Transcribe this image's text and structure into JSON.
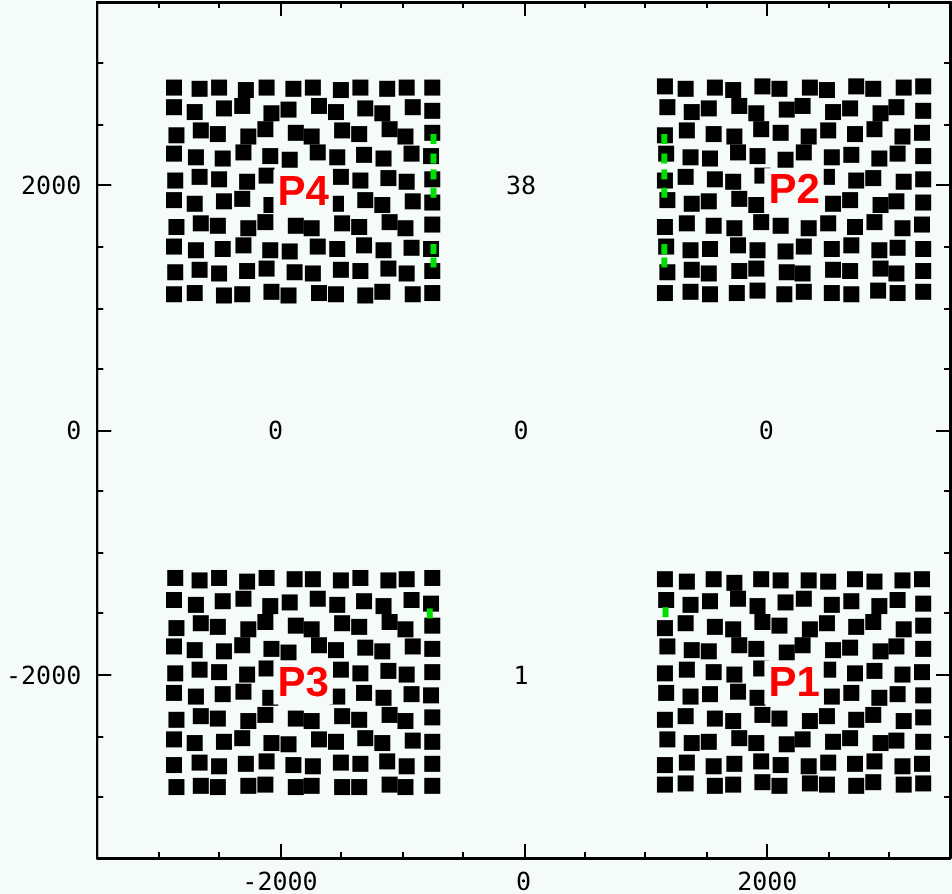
{
  "chart_data": {
    "type": "scatter",
    "marker": "square",
    "xlim": [
      -3500,
      3500
    ],
    "ylim": [
      -3500,
      3500
    ],
    "xticks": [
      {
        "value": -3000,
        "label": null
      },
      {
        "value": -2500,
        "label": null
      },
      -2000,
      {
        "value": -1500,
        "label": null
      },
      {
        "value": -1000,
        "label": null
      },
      {
        "value": -500,
        "label": null
      },
      0,
      {
        "value": 500,
        "label": null
      },
      {
        "value": 1000,
        "label": null
      },
      {
        "value": 1500,
        "label": null
      },
      2000,
      {
        "value": 2500,
        "label": null
      },
      {
        "value": 3000,
        "label": null
      }
    ],
    "yticks": [
      {
        "value": -3000,
        "label": null
      },
      {
        "value": -2500,
        "label": null
      },
      -2000,
      {
        "value": -1500,
        "label": null
      },
      {
        "value": -1000,
        "label": null
      },
      {
        "value": -500,
        "label": null
      },
      0,
      {
        "value": 500,
        "label": null
      },
      {
        "value": 1000,
        "label": null
      },
      {
        "value": 1500,
        "label": null
      },
      2000,
      {
        "value": 2500,
        "label": null
      },
      {
        "value": 3000,
        "label": null
      }
    ],
    "series": [
      {
        "name": "P1",
        "color": "#000000",
        "x": [
          1160,
          1340,
          1560,
          1730,
          1950,
          2110,
          2340,
          2500,
          2720,
          2880,
          3110,
          3270,
          1170,
          1370,
          1530,
          1760,
          1920,
          2150,
          2300,
          2530,
          2690,
          2920,
          3070,
          3280,
          1160,
          1330,
          1570,
          1720,
          1960,
          2100,
          2350,
          2490,
          2730,
          2870,
          3120,
          3280,
          1180,
          1380,
          1520,
          1770,
          1910,
          2160,
          2290,
          2540,
          2680,
          2930,
          3060,
          3280,
          1160,
          1340,
          1560,
          1730,
          1950,
          2500,
          2720,
          2880,
          3110,
          3270,
          1170,
          1370,
          1530,
          1760,
          1920,
          2530,
          2690,
          2920,
          3070,
          3280,
          1160,
          1330,
          1570,
          1720,
          1960,
          2100,
          2350,
          2490,
          2730,
          2870,
          3120,
          3280,
          1180,
          1380,
          1520,
          1770,
          1910,
          2160,
          2290,
          2540,
          2680,
          2930,
          3060,
          3280,
          1160,
          1340,
          1560,
          1730,
          1950,
          2110,
          2340,
          2500,
          2720,
          2880,
          3110,
          3270,
          1160,
          1330,
          1570,
          1720,
          1960,
          2100,
          2350,
          2490,
          2730,
          2870,
          3120,
          3280
        ],
        "values": [
          -1220,
          -1240,
          -1220,
          -1250,
          -1220,
          -1230,
          -1230,
          -1240,
          -1220,
          -1240,
          -1230,
          -1220,
          -1390,
          -1430,
          -1400,
          -1380,
          -1440,
          -1410,
          -1380,
          -1430,
          -1400,
          -1440,
          -1390,
          -1420,
          -1620,
          -1580,
          -1610,
          -1630,
          -1570,
          -1600,
          -1630,
          -1580,
          -1610,
          -1570,
          -1630,
          -1600,
          -1770,
          -1800,
          -1810,
          -1760,
          -1790,
          -1820,
          -1760,
          -1800,
          -1780,
          -1810,
          -1770,
          -1790,
          -1990,
          -1960,
          -1980,
          -2000,
          -1950,
          -1960,
          -1990,
          -1970,
          -2000,
          -1980,
          -2150,
          -2180,
          -2160,
          -2140,
          -2190,
          -2180,
          -2150,
          -2190,
          -2160,
          -2170,
          -2370,
          -2340,
          -2360,
          -2380,
          -2330,
          -2360,
          -2380,
          -2340,
          -2370,
          -2330,
          -2380,
          -2350,
          -2530,
          -2560,
          -2550,
          -2520,
          -2560,
          -2570,
          -2530,
          -2550,
          -2520,
          -2560,
          -2540,
          -2550,
          -2740,
          -2720,
          -2750,
          -2730,
          -2710,
          -2740,
          -2750,
          -2720,
          -2730,
          -2710,
          -2750,
          -2730,
          -2900,
          -2890,
          -2910,
          -2900,
          -2880,
          -2910,
          -2890,
          -2900,
          -2910,
          -2880,
          -2900,
          -2890
        ]
      },
      {
        "name": "P2",
        "color": "#000000",
        "x": [
          1160,
          1330,
          1570,
          1720,
          1960,
          2100,
          2350,
          2490,
          2730,
          2870,
          3120,
          3280,
          1180,
          1380,
          1520,
          1770,
          1910,
          2160,
          2290,
          2540,
          2680,
          2930,
          3060,
          3280,
          1160,
          1340,
          1560,
          1730,
          1950,
          2110,
          2340,
          2500,
          2720,
          2880,
          3110,
          3270,
          1170,
          1370,
          1530,
          1760,
          1920,
          2150,
          2300,
          2530,
          2690,
          2920,
          3070,
          3280,
          1160,
          1330,
          1570,
          1720,
          1960,
          2490,
          2730,
          2870,
          3120,
          3280,
          1180,
          1380,
          1520,
          1770,
          1910,
          2540,
          2680,
          2930,
          3060,
          3280,
          1160,
          1340,
          1560,
          1730,
          1950,
          2110,
          2340,
          2500,
          2720,
          2880,
          3110,
          3270,
          1170,
          1370,
          1530,
          1760,
          1920,
          2150,
          2300,
          2530,
          2690,
          2920,
          3070,
          3280,
          1180,
          1380,
          1520,
          1770,
          1910,
          2160,
          2290,
          2540,
          2680,
          2930,
          3060,
          3280,
          1160,
          1370,
          1530,
          1750,
          1920,
          2140,
          2300,
          2530,
          2690,
          2910,
          3070,
          3280
        ],
        "values": [
          2810,
          2790,
          2800,
          2780,
          2810,
          2790,
          2800,
          2780,
          2810,
          2790,
          2800,
          2810,
          2640,
          2600,
          2630,
          2650,
          2590,
          2620,
          2650,
          2600,
          2630,
          2590,
          2640,
          2610,
          2410,
          2450,
          2420,
          2400,
          2460,
          2430,
          2400,
          2450,
          2420,
          2460,
          2400,
          2430,
          2260,
          2230,
          2220,
          2270,
          2240,
          2210,
          2270,
          2230,
          2250,
          2220,
          2260,
          2240,
          2040,
          2070,
          2050,
          2030,
          2080,
          2070,
          2040,
          2060,
          2030,
          2050,
          1880,
          1850,
          1870,
          1890,
          1840,
          1850,
          1880,
          1840,
          1870,
          1860,
          1660,
          1690,
          1670,
          1650,
          1700,
          1670,
          1650,
          1690,
          1660,
          1700,
          1650,
          1680,
          1500,
          1470,
          1480,
          1510,
          1470,
          1460,
          1500,
          1480,
          1510,
          1470,
          1490,
          1480,
          1290,
          1310,
          1280,
          1300,
          1320,
          1290,
          1280,
          1310,
          1300,
          1320,
          1280,
          1300,
          1120,
          1130,
          1110,
          1120,
          1140,
          1110,
          1130,
          1120,
          1110,
          1140,
          1120,
          1130
        ]
      },
      {
        "name": "P3",
        "color": "#000000",
        "x": [
          -2860,
          -2660,
          -2500,
          -2270,
          -2110,
          -1880,
          -1730,
          -1500,
          -1340,
          -1110,
          -960,
          -750,
          -2870,
          -2690,
          -2470,
          -2300,
          -2080,
          -1920,
          -1690,
          -1530,
          -1310,
          -1150,
          -920,
          -760,
          -2850,
          -2650,
          -2510,
          -2260,
          -2120,
          -1870,
          -1740,
          -1490,
          -1350,
          -1100,
          -970,
          -750,
          -2870,
          -2700,
          -2460,
          -2310,
          -2070,
          -1930,
          -1680,
          -1540,
          -1300,
          -1160,
          -910,
          -750,
          -2860,
          -2660,
          -2500,
          -2270,
          -2110,
          -1500,
          -1340,
          -1110,
          -960,
          -750,
          -2870,
          -2690,
          -2470,
          -2300,
          -2080,
          -1530,
          -1310,
          -1150,
          -920,
          -760,
          -2850,
          -2650,
          -2510,
          -2260,
          -2120,
          -1870,
          -1740,
          -1490,
          -1350,
          -1100,
          -970,
          -750,
          -2870,
          -2700,
          -2460,
          -2310,
          -2070,
          -1930,
          -1680,
          -1540,
          -1300,
          -1160,
          -910,
          -750,
          -2870,
          -2660,
          -2500,
          -2280,
          -2110,
          -1890,
          -1730,
          -1500,
          -1340,
          -1120,
          -960,
          -750,
          -2850,
          -2650,
          -2510,
          -2260,
          -2120,
          -1870,
          -1740,
          -1490,
          -1350,
          -1100,
          -970,
          -750
        ],
        "values": [
          -1210,
          -1230,
          -1210,
          -1240,
          -1210,
          -1220,
          -1220,
          -1230,
          -1210,
          -1230,
          -1220,
          -1210,
          -1390,
          -1430,
          -1400,
          -1380,
          -1440,
          -1410,
          -1380,
          -1430,
          -1400,
          -1440,
          -1390,
          -1420,
          -1620,
          -1580,
          -1610,
          -1630,
          -1570,
          -1600,
          -1630,
          -1580,
          -1610,
          -1570,
          -1630,
          -1600,
          -1770,
          -1800,
          -1810,
          -1760,
          -1790,
          -1820,
          -1760,
          -1800,
          -1780,
          -1810,
          -1770,
          -1790,
          -1990,
          -1960,
          -1980,
          -2000,
          -1950,
          -1960,
          -1990,
          -1970,
          -2000,
          -1980,
          -2150,
          -2180,
          -2160,
          -2140,
          -2190,
          -2180,
          -2150,
          -2190,
          -2160,
          -2170,
          -2370,
          -2340,
          -2360,
          -2380,
          -2330,
          -2360,
          -2380,
          -2340,
          -2370,
          -2330,
          -2380,
          -2350,
          -2530,
          -2560,
          -2550,
          -2520,
          -2560,
          -2570,
          -2530,
          -2550,
          -2520,
          -2560,
          -2540,
          -2550,
          -2740,
          -2720,
          -2750,
          -2730,
          -2710,
          -2740,
          -2750,
          -2720,
          -2730,
          -2710,
          -2750,
          -2730,
          -2920,
          -2910,
          -2920,
          -2910,
          -2900,
          -2920,
          -2910,
          -2920,
          -2920,
          -2900,
          -2920,
          -2910
        ]
      },
      {
        "name": "P4",
        "color": "#000000",
        "x": [
          -2870,
          -2660,
          -2500,
          -2280,
          -2110,
          -1890,
          -1730,
          -1500,
          -1340,
          -1120,
          -960,
          -750,
          -2870,
          -2700,
          -2460,
          -2310,
          -2070,
          -1930,
          -1680,
          -1540,
          -1300,
          -1160,
          -910,
          -750,
          -2850,
          -2650,
          -2510,
          -2260,
          -2120,
          -1870,
          -1740,
          -1490,
          -1350,
          -1100,
          -970,
          -750,
          -2870,
          -2690,
          -2470,
          -2300,
          -2080,
          -1920,
          -1690,
          -1530,
          -1310,
          -1150,
          -920,
          -760,
          -2860,
          -2660,
          -2500,
          -2270,
          -2110,
          -1500,
          -1340,
          -1110,
          -960,
          -750,
          -2870,
          -2700,
          -2460,
          -2310,
          -2070,
          -1540,
          -1300,
          -1160,
          -910,
          -750,
          -2850,
          -2650,
          -2510,
          -2260,
          -2120,
          -1870,
          -1740,
          -1490,
          -1350,
          -1100,
          -970,
          -750,
          -2870,
          -2690,
          -2470,
          -2300,
          -2080,
          -1920,
          -1690,
          -1530,
          -1310,
          -1150,
          -920,
          -760,
          -2860,
          -2660,
          -2500,
          -2270,
          -2110,
          -1880,
          -1730,
          -1500,
          -1340,
          -1110,
          -960,
          -750,
          -2870,
          -2700,
          -2460,
          -2310,
          -2070,
          -1930,
          -1680,
          -1540,
          -1300,
          -1160,
          -910,
          -750
        ],
        "values": [
          2800,
          2790,
          2800,
          2780,
          2800,
          2790,
          2800,
          2780,
          2800,
          2790,
          2800,
          2800,
          2640,
          2600,
          2630,
          2650,
          2590,
          2620,
          2650,
          2600,
          2630,
          2590,
          2640,
          2610,
          2410,
          2450,
          2420,
          2400,
          2460,
          2430,
          2400,
          2450,
          2420,
          2460,
          2400,
          2430,
          2260,
          2230,
          2220,
          2270,
          2240,
          2210,
          2270,
          2230,
          2250,
          2220,
          2260,
          2240,
          2040,
          2070,
          2050,
          2030,
          2080,
          2070,
          2040,
          2060,
          2030,
          2050,
          1880,
          1850,
          1870,
          1890,
          1840,
          1850,
          1880,
          1840,
          1870,
          1860,
          1660,
          1690,
          1670,
          1650,
          1700,
          1670,
          1650,
          1690,
          1660,
          1700,
          1650,
          1680,
          1500,
          1470,
          1480,
          1510,
          1470,
          1460,
          1500,
          1480,
          1510,
          1470,
          1490,
          1480,
          1290,
          1310,
          1280,
          1300,
          1320,
          1290,
          1280,
          1310,
          1300,
          1320,
          1280,
          1300,
          1110,
          1120,
          1100,
          1110,
          1130,
          1100,
          1120,
          1110,
          1100,
          1130,
          1110,
          1120
        ]
      },
      {
        "color": "#00e000",
        "x": [
          -740,
          -740,
          -740,
          -740,
          -740,
          -740,
          1155,
          1155,
          1155,
          1155,
          1155,
          1155,
          -770,
          1165
        ],
        "values": [
          2380,
          2220,
          2090,
          1940,
          1480,
          1370,
          2380,
          2220,
          2090,
          1940,
          1480,
          1370,
          -1500,
          -1490
        ]
      }
    ],
    "annotations": [
      "38",
      "0",
      "0",
      "0",
      "1"
    ]
  }
}
